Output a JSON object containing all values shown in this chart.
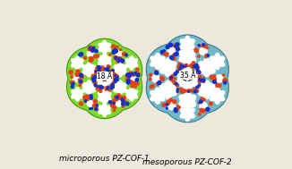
{
  "left_label": "microporous PZ-COF-1",
  "right_label": "mesoporous PZ-COF-2",
  "left_annotation": "18 Å",
  "right_annotation": "35 Å",
  "background_color": "#ede8dc",
  "left_frame_color": "#7dd830",
  "right_frame_color": "#70b8c8",
  "left_frame_dark": "#3a7a10",
  "right_frame_dark": "#2a6070",
  "atom_color_red": "#e84010",
  "atom_color_blue": "#1030cc",
  "atom_color_orange": "#f07020",
  "label_fontsize": 6.5,
  "annotation_fontsize": 5.5,
  "figsize": [
    3.26,
    1.89
  ],
  "dpi": 100
}
